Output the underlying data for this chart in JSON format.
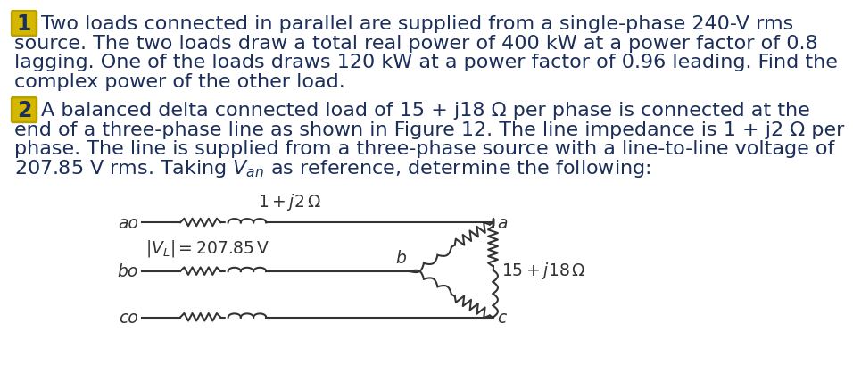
{
  "background_color": "#ffffff",
  "fig_width": 10.24,
  "fig_height": 5.31,
  "problem1_number": "1",
  "problem1_text_lines": [
    "Two loads connected in parallel are supplied from a single-phase 240-V rms",
    "source. The two loads draw a total real power of 400 kW at a power factor of 0.8",
    "lagging. One of the loads draws 120 kW at a power factor of 0.96 leading. Find the",
    "complex power of the other load."
  ],
  "problem2_number": "2",
  "problem2_text_lines_raw": [
    "A balanced delta connected load of 15 + j18 Ω per phase is connected at the",
    "end of a three-phase line as shown in Figure 12. The line impedance is 1 + j2 Ω per",
    "phase. The line is supplied from a three-phase source with a line-to-line voltage of"
  ],
  "circuit_label_impedance": "1 + j2Ω",
  "circuit_label_voltage": "|V_L| = 207.85 V",
  "circuit_label_load": "15 + j18 Ω",
  "text_color": "#1c2e5a",
  "text_color_circuit": "#333333",
  "box_edge_color": "#b8a000",
  "box_fill_color": "#d4b800",
  "font_size_main": 16.0,
  "font_size_circuit": 13.5,
  "line_color": "#333333",
  "line_width": 1.5
}
